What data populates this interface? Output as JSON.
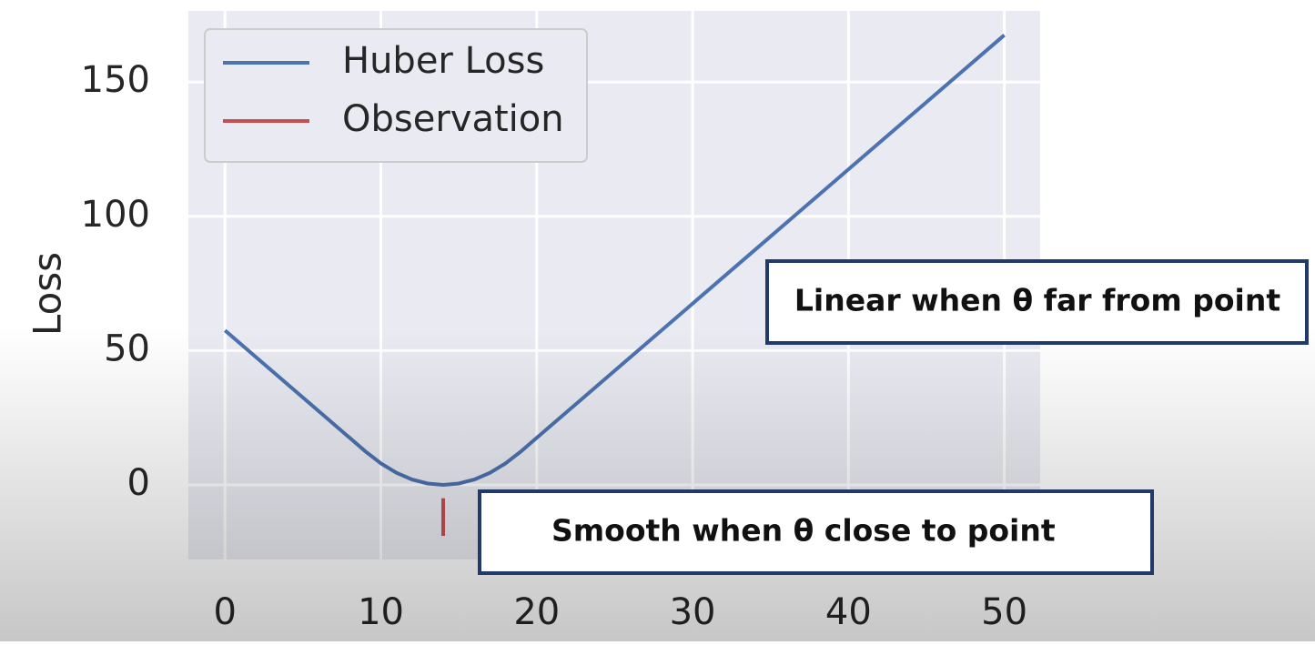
{
  "chart_data": {
    "type": "line",
    "y_label": "Loss",
    "series": [
      {
        "name": "Huber Loss",
        "color": "#4c72b0",
        "x": [
          0,
          2,
          4,
          6,
          8,
          9,
          10,
          11,
          12,
          13,
          14,
          15,
          16,
          17,
          18,
          19,
          20,
          22,
          24,
          26,
          28,
          30,
          35,
          40,
          45,
          50
        ],
        "values": [
          57.5,
          47.5,
          37.5,
          27.5,
          17.5,
          12.5,
          8,
          4.5,
          2,
          0.5,
          0,
          0.5,
          2,
          4.5,
          8,
          12.5,
          17.5,
          27.5,
          37.5,
          47.5,
          57.5,
          67.5,
          92.5,
          117.5,
          142.5,
          167.5
        ]
      },
      {
        "name": "Observation",
        "color": "#c44e52",
        "x": [
          14,
          14
        ],
        "values": [
          -5,
          -19
        ]
      }
    ],
    "xlim": [
      -2.35,
      52.3
    ],
    "ylim": [
      -27.8,
      176.5
    ],
    "xticks": [
      0,
      10,
      20,
      30,
      40,
      50
    ],
    "yticks": [
      0,
      50,
      100,
      150
    ],
    "grid": true,
    "legend": "upper left",
    "annotations": [
      "Linear when θ far from point",
      "Smooth when θ close to point"
    ]
  }
}
